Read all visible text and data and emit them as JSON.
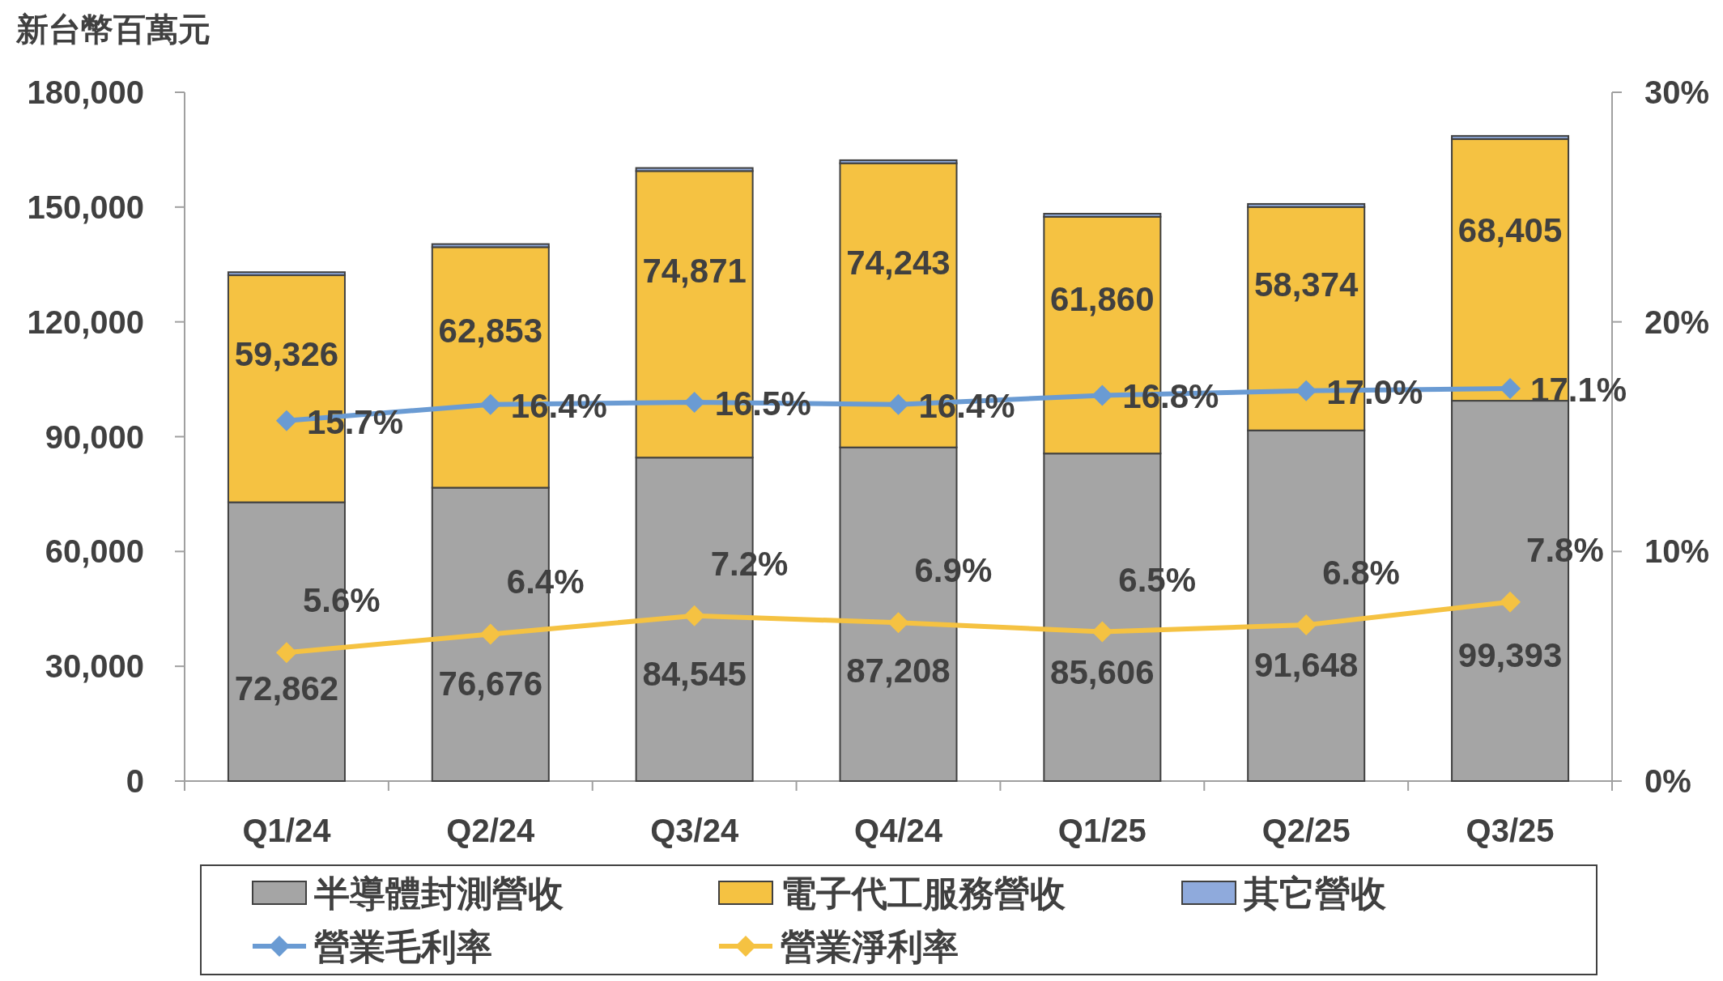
{
  "chart_data": {
    "type": "bar",
    "stacked": true,
    "ylabel": "新台幣百萬元",
    "categories": [
      "Q1/24",
      "Q2/24",
      "Q3/24",
      "Q4/24",
      "Q1/25",
      "Q2/25",
      "Q3/25"
    ],
    "ylim": [
      0,
      180000
    ],
    "yticks": [
      {
        "value": 0,
        "label": "0"
      },
      {
        "value": 30000,
        "label": "30,000"
      },
      {
        "value": 60000,
        "label": "60,000"
      },
      {
        "value": 90000,
        "label": "90,000"
      },
      {
        "value": 120000,
        "label": "120,000"
      },
      {
        "value": 150000,
        "label": "150,000"
      },
      {
        "value": 180000,
        "label": "180,000"
      }
    ],
    "y2lim": [
      0,
      30
    ],
    "y2ticks": [
      {
        "value": 0,
        "label": "0%"
      },
      {
        "value": 10,
        "label": "10%"
      },
      {
        "value": 20,
        "label": "20%"
      },
      {
        "value": 30,
        "label": "30%"
      }
    ],
    "legend": "bottom",
    "marker": "diamond",
    "line_style": "solid",
    "grid": false,
    "series": [
      {
        "name": "半導體封測營收",
        "color": "#a5a5a5",
        "values": [
          72862,
          76676,
          84545,
          87208,
          85606,
          91648,
          99393
        ],
        "value_labels": [
          "72,862",
          "76,676",
          "84,545",
          "87,208",
          "85,606",
          "91,648",
          "99,393"
        ]
      },
      {
        "name": "電子代工服務營收",
        "color": "#f5c242",
        "values": [
          59326,
          62853,
          74871,
          74243,
          61860,
          58374,
          68405
        ],
        "value_labels": [
          "59,326",
          "62,853",
          "74,871",
          "74,243",
          "61,860",
          "58,374",
          "68,405"
        ]
      },
      {
        "name": "其它營收",
        "color": "#8faadc",
        "values": [
          800,
          800,
          800,
          800,
          800,
          800,
          800
        ]
      },
      {
        "name": "營業毛利率",
        "type": "line",
        "axis": "y2",
        "color": "#6a9bd3",
        "values": [
          15.7,
          16.4,
          16.5,
          16.4,
          16.8,
          17.0,
          17.1
        ],
        "value_labels": [
          "15.7%",
          "16.4%",
          "16.5%",
          "16.4%",
          "16.8%",
          "17.0%",
          "17.1%"
        ]
      },
      {
        "name": "營業淨利率",
        "type": "line",
        "axis": "y2",
        "color": "#f5c242",
        "values": [
          5.6,
          6.4,
          7.2,
          6.9,
          6.5,
          6.8,
          7.8
        ],
        "value_labels": [
          "5.6%",
          "6.4%",
          "7.2%",
          "6.9%",
          "6.5%",
          "6.8%",
          "7.8%"
        ]
      }
    ]
  }
}
